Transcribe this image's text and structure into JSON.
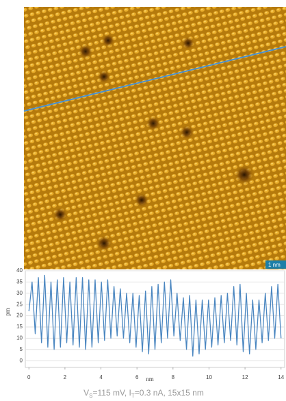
{
  "image": {
    "scale_label": "1 nm"
  },
  "caption": {
    "parts": [
      "V",
      "S",
      "=115 mV, I",
      "T",
      "=0.3 nA, 15x15 nm"
    ]
  },
  "chart_data": {
    "type": "line",
    "x_label": "nm",
    "y_label": "pm",
    "x": [
      0,
      0.175,
      0.35,
      0.525,
      0.7,
      0.875,
      1.05,
      1.225,
      1.4,
      1.575,
      1.75,
      1.925,
      2.1,
      2.275,
      2.45,
      2.625,
      2.8,
      2.975,
      3.15,
      3.325,
      3.5,
      3.675,
      3.85,
      4.025,
      4.2,
      4.375,
      4.55,
      4.725,
      4.9,
      5.075,
      5.25,
      5.425,
      5.6,
      5.775,
      5.95,
      6.125,
      6.3,
      6.475,
      6.65,
      6.825,
      7,
      7.175,
      7.35,
      7.525,
      7.7,
      7.875,
      8.05,
      8.225,
      8.4,
      8.575,
      8.75,
      8.925,
      9.1,
      9.275,
      9.45,
      9.625,
      9.8,
      9.975,
      10.15,
      10.325,
      10.5,
      10.675,
      10.85,
      11.025,
      11.2,
      11.375,
      11.55,
      11.725,
      11.9,
      12.075,
      12.25,
      12.425,
      12.6,
      12.775,
      12.95,
      13.125,
      13.3,
      13.475,
      13.65,
      13.825,
      14
    ],
    "series": [
      {
        "color": "#4a86c0",
        "values": [
          22,
          35,
          12,
          37,
          8,
          38,
          6,
          35,
          5,
          36,
          6,
          37,
          8,
          35,
          7,
          37,
          6,
          37,
          5,
          36,
          6,
          36,
          8,
          35,
          9,
          36,
          10,
          33,
          11,
          32,
          10,
          30,
          8,
          30,
          6,
          29,
          4,
          31,
          3,
          33,
          5,
          34,
          8,
          35,
          10,
          36,
          11,
          30,
          9,
          28,
          5,
          29,
          2,
          27,
          3,
          27,
          5,
          27,
          6,
          28,
          7,
          29,
          8,
          30,
          9,
          33,
          7,
          34,
          4,
          30,
          3,
          27,
          5,
          27,
          8,
          30,
          9,
          33,
          10,
          34,
          10
        ]
      }
    ],
    "xlim": [
      -0.2,
      14.2
    ],
    "ylim": [
      -3,
      40
    ],
    "xticks": [
      0,
      2,
      4,
      6,
      8,
      10,
      12,
      14
    ],
    "yticks": [
      0,
      5,
      10,
      15,
      20,
      25,
      30,
      35,
      40
    ],
    "grid": true
  }
}
